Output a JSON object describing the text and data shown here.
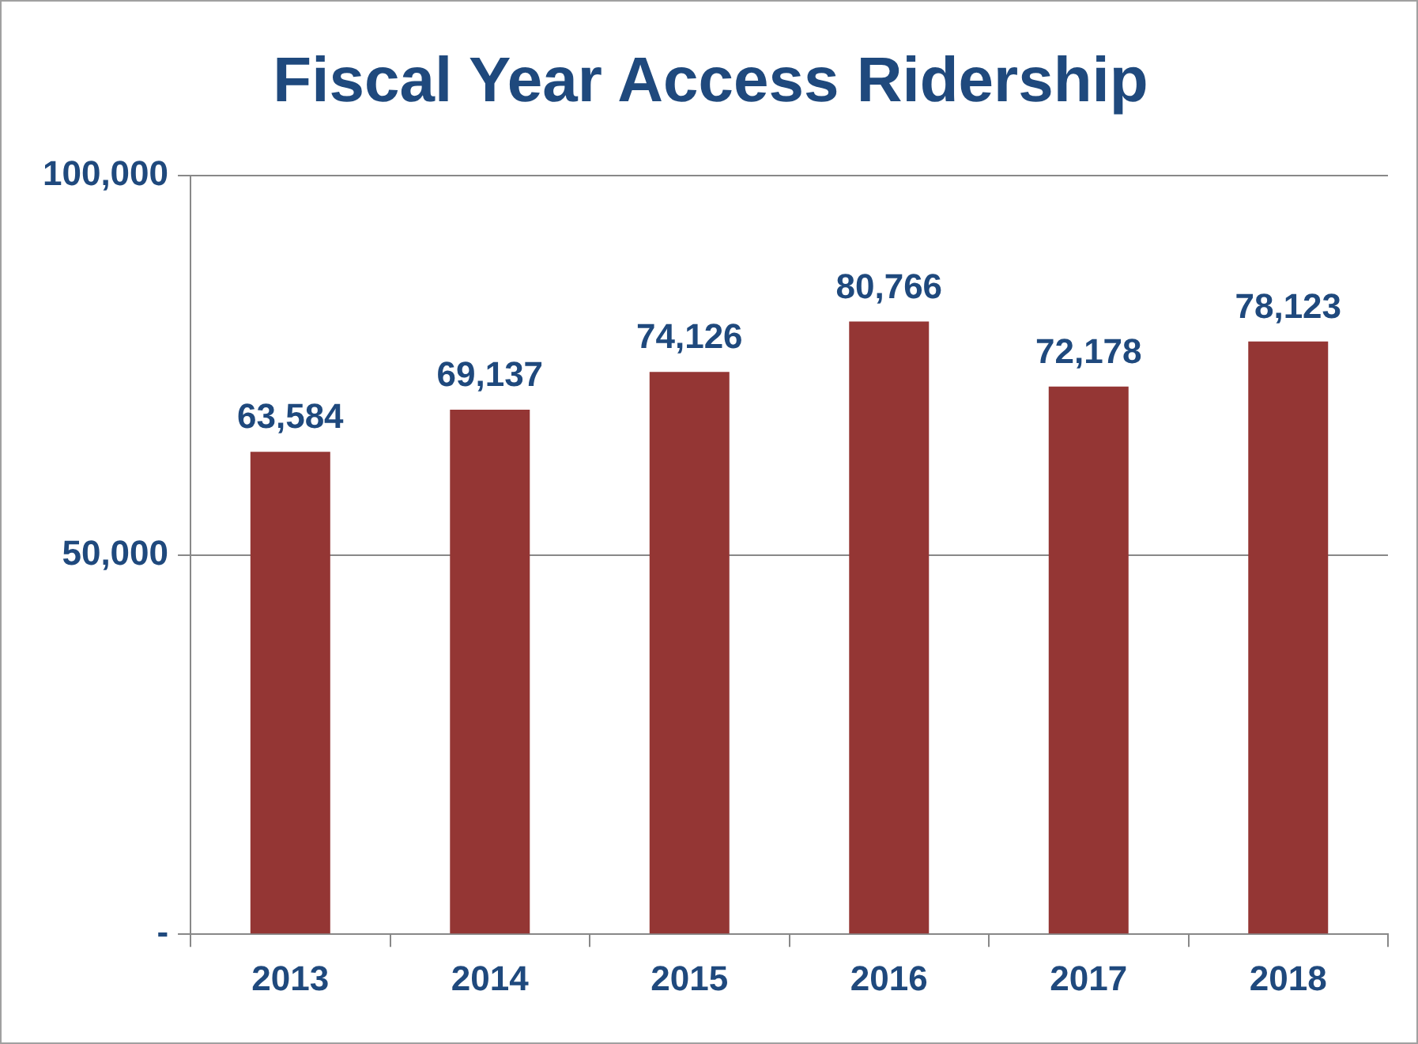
{
  "chart_data": {
    "type": "bar",
    "title": "Fiscal Year Access Ridership",
    "categories": [
      "2013",
      "2014",
      "2015",
      "2016",
      "2017",
      "2018"
    ],
    "values": [
      63584,
      69137,
      74126,
      80766,
      72178,
      78123
    ],
    "color": "#943634",
    "ylim": [
      0,
      100000
    ],
    "yticks": [
      {
        "value": 0,
        "label": "-"
      },
      {
        "value": 50000,
        "label": "50,000"
      },
      {
        "value": 100000,
        "label": "100,000"
      }
    ],
    "value_labels": [
      "63,584",
      "69,137",
      "74,126",
      "80,766",
      "72,178",
      "78,123"
    ],
    "grid": "y",
    "legend": false
  }
}
